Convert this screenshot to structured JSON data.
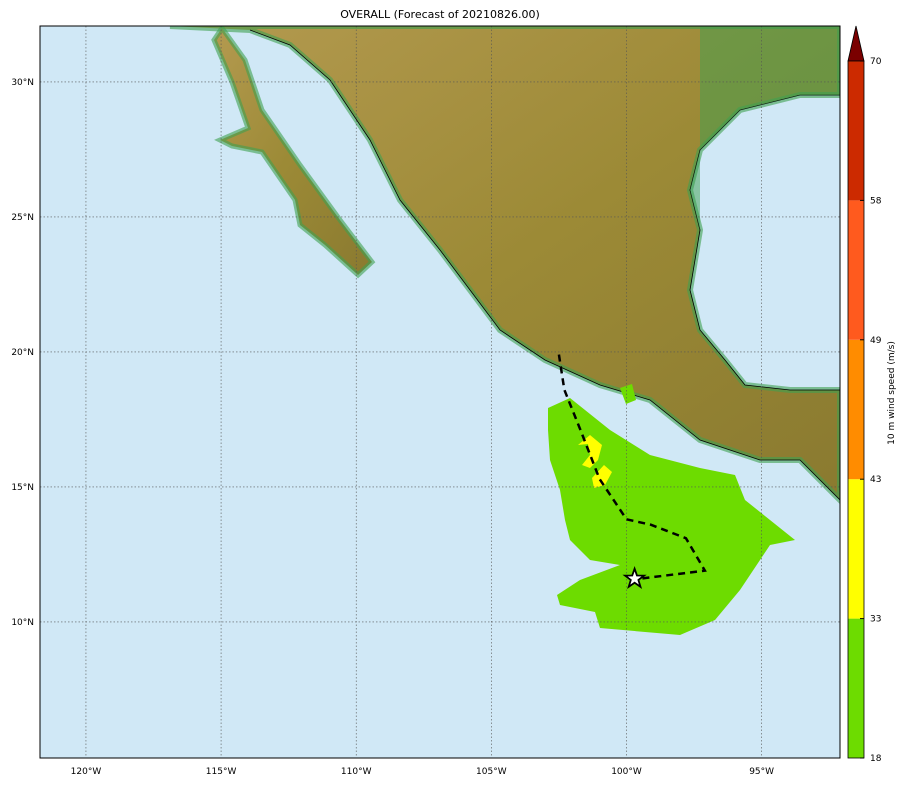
{
  "title": "OVERALL (Forecast of 20210826.00)",
  "map": {
    "lon_range": [
      -121.7,
      -92.1
    ],
    "lat_range": [
      4.96,
      32.07
    ],
    "lon_ticks": [
      {
        "v": -120,
        "label": "120°W"
      },
      {
        "v": -115,
        "label": "115°W"
      },
      {
        "v": -110,
        "label": "110°W"
      },
      {
        "v": -105,
        "label": "105°W"
      },
      {
        "v": -100,
        "label": "100°W"
      },
      {
        "v": -95,
        "label": "95°W"
      }
    ],
    "lat_ticks": [
      {
        "v": 30,
        "label": "30°N"
      },
      {
        "v": 25,
        "label": "25°N"
      },
      {
        "v": 20,
        "label": "20°N"
      },
      {
        "v": 15,
        "label": "15°N"
      },
      {
        "v": 10,
        "label": "10°N"
      }
    ],
    "grid": "dotted",
    "colors": {
      "ocean": "#d0e8f6",
      "land": "#a8923e",
      "coast_green": "#3fa050"
    },
    "track": [
      [
        -102.5,
        19.9
      ],
      [
        -102.3,
        18.6
      ],
      [
        -101.7,
        17.1
      ],
      [
        -101.0,
        15.3
      ],
      [
        -100.0,
        13.8
      ],
      [
        -99.1,
        13.6
      ],
      [
        -97.8,
        13.1
      ],
      [
        -97.1,
        11.9
      ],
      [
        -99.5,
        11.6
      ]
    ],
    "storm_position": [
      -99.7,
      11.6
    ],
    "storm_icon": "star-icon"
  },
  "colorbar": {
    "label": "10 m wind speed (m/s)",
    "ticks": [
      "18",
      "33",
      "43",
      "49",
      "58",
      "70"
    ],
    "colors": [
      "#6ddc00",
      "#ffff00",
      "#ff8c00",
      "#ff5a1e",
      "#cc2a00"
    ],
    "extend_color": "#7a0000"
  }
}
